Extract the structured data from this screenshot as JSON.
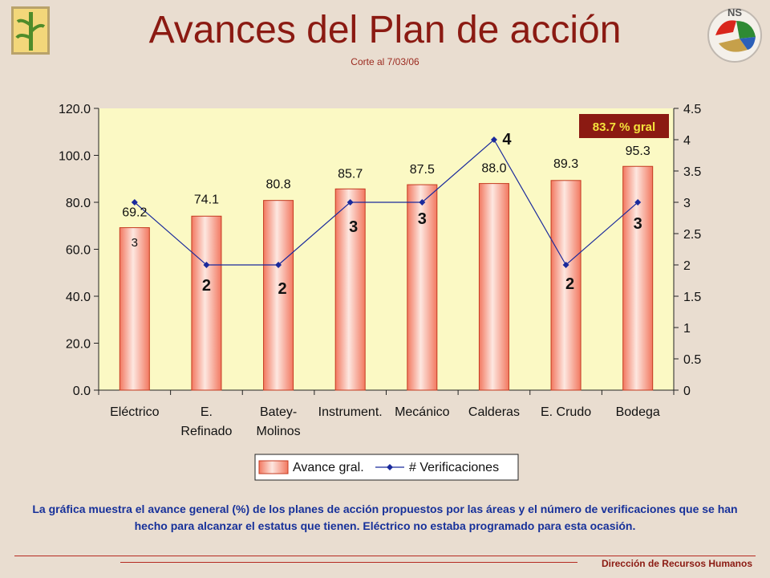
{
  "page": {
    "title": "Avances del Plan de acción",
    "subtitle": "Corte al 7/03/06",
    "caption": "La gráfica muestra el avance general (%) de los planes de acción propuestos por las áreas y el número de verificaciones que se han hecho para alcanzar el estatus que tienen. Eléctrico no estaba programado para esta ocasión.",
    "footer": "Dirección de Recursos Humanos",
    "logo_right_text": "NS"
  },
  "chart_data": {
    "type": "bar",
    "categories": [
      [
        "Eléctrico"
      ],
      [
        "E.",
        "Refinado"
      ],
      [
        "Batey-",
        "Molinos"
      ],
      [
        "Instrument."
      ],
      [
        "Mecánico"
      ],
      [
        "Calderas"
      ],
      [
        "E. Crudo"
      ],
      [
        "Bodega"
      ]
    ],
    "series": [
      {
        "name": "Avance gral.",
        "axis": "left",
        "type": "bar",
        "values": [
          69.2,
          74.1,
          80.8,
          85.7,
          87.5,
          88.0,
          89.3,
          95.3
        ],
        "labels": [
          "69.2",
          "74.1",
          "80.8",
          "85.7",
          "87.5",
          "88.0",
          "89.3",
          "95.3"
        ]
      },
      {
        "name": "# Verificaciones",
        "axis": "right",
        "type": "line",
        "values": [
          3,
          2,
          2,
          3,
          3,
          4,
          2,
          3
        ],
        "labels": [
          "3",
          "2",
          "2",
          "3",
          "3",
          "4",
          "2",
          "3"
        ]
      }
    ],
    "y_left": {
      "min": 0,
      "max": 120,
      "ticks": [
        "0.0",
        "20.0",
        "40.0",
        "60.0",
        "80.0",
        "100.0",
        "120.0"
      ]
    },
    "y_right": {
      "min": 0,
      "max": 4.5,
      "ticks": [
        "0",
        "0.5",
        "1",
        "1.5",
        "2",
        "2.5",
        "3",
        "3.5",
        "4",
        "4.5"
      ]
    },
    "annotation": "83.7 % gral",
    "grid": false,
    "legend_position": "bottom",
    "colors": {
      "plot_bg": "#fbf9c4",
      "bar": "#f27860",
      "bar_light": "#fde7e0",
      "line": "#1a2a9c",
      "annotation_bg": "#8b1a12",
      "annotation_text": "#f5e23c"
    }
  }
}
